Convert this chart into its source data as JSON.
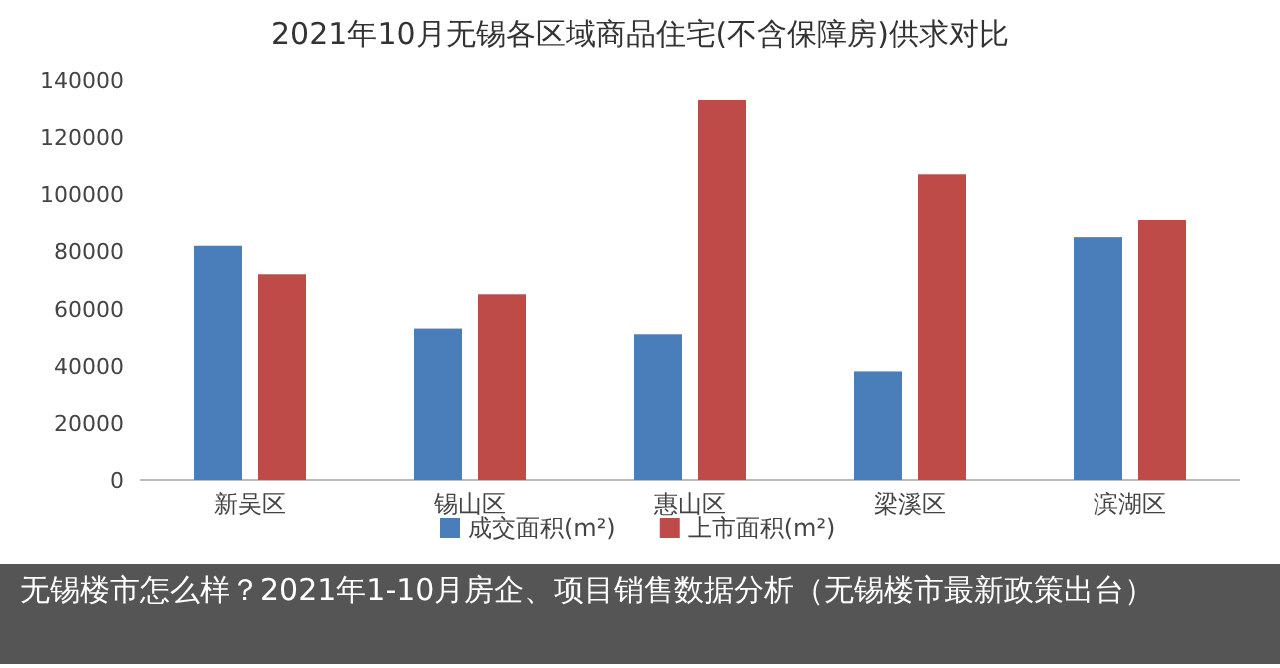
{
  "chart_data": {
    "type": "bar",
    "title": "2021年10月无锡各区域商品住宅(不含保障房)供求对比",
    "categories": [
      "新吴区",
      "锡山区",
      "惠山区",
      "梁溪区",
      "滨湖区"
    ],
    "series": [
      {
        "name": "成交面积(m²)",
        "color": "#4a7ebb",
        "values": [
          82000,
          53000,
          51000,
          38000,
          85000
        ]
      },
      {
        "name": "上市面积(m²)",
        "color": "#be4b48",
        "values": [
          72000,
          65000,
          133000,
          107000,
          91000
        ]
      }
    ],
    "ylim": [
      0,
      140000
    ],
    "yticks": [
      0,
      20000,
      40000,
      60000,
      80000,
      100000,
      120000,
      140000
    ],
    "legend": "bottom",
    "annotations": [
      "无锡楼市怎么样？2021年1-10月房企、项目销售数据分析（无锡楼市最新政策出台）"
    ]
  }
}
